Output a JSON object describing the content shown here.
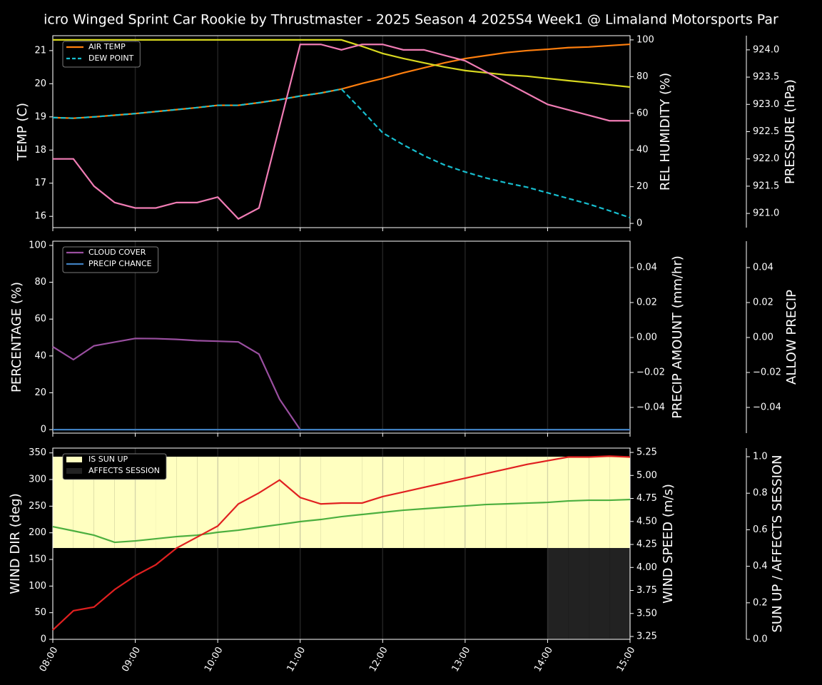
{
  "chart_data": [
    {
      "type": "line",
      "title": "icro Winged Sprint Car Rookie by Thrustmaster - 2025 Season 4 2025S4 Week1 @ Limaland Motorsports Par",
      "x": [
        8,
        8.25,
        8.5,
        8.75,
        9,
        9.25,
        9.5,
        9.75,
        10,
        10.25,
        10.5,
        10.75,
        11,
        11.25,
        11.5,
        11.75,
        12,
        12.25,
        12.5,
        12.75,
        13,
        13.25,
        13.5,
        13.75,
        14,
        14.25,
        14.5,
        14.75,
        15
      ],
      "xlim": [
        8,
        15
      ],
      "xticks": [
        8,
        9,
        10,
        11,
        12,
        13,
        14,
        15
      ],
      "grid": true,
      "ylabel": "TEMP (C)",
      "ylabel_color": "#ffffff",
      "ylim": [
        15.66,
        21.45
      ],
      "yticks": [
        16,
        17,
        18,
        19,
        20,
        21
      ],
      "y2label": "REL HUMIDITY (%)",
      "y2label_color": "#d0d020",
      "y2lim": [
        -2.3,
        102.3
      ],
      "y2ticks": [
        0,
        20,
        40,
        60,
        80,
        100
      ],
      "y3label": "PRESSURE (hPa)",
      "y3label_color": "#f07cb4",
      "y3lim": [
        920.74,
        924.26
      ],
      "y3ticks": [
        {
          "value": 921,
          "label": "921.0"
        },
        921.5,
        {
          "value": 922,
          "label": "922.0"
        },
        922.5,
        {
          "value": 923,
          "label": "923.0"
        },
        923.5,
        {
          "value": 924,
          "label": "924.0"
        }
      ],
      "series": [
        {
          "name": "AIR TEMP",
          "color": "#ff7f0e",
          "axis": "y",
          "style": "solid",
          "in_legend": true,
          "values": [
            18.98,
            18.96,
            19.0,
            19.05,
            19.1,
            19.16,
            19.22,
            19.28,
            19.35,
            19.35,
            19.43,
            19.52,
            19.63,
            19.72,
            19.84,
            20.01,
            20.16,
            20.33,
            20.48,
            20.63,
            20.76,
            20.85,
            20.94,
            21.0,
            21.04,
            21.09,
            21.11,
            21.15,
            21.19
          ]
        },
        {
          "name": "DEW POINT",
          "color": "#17becf",
          "axis": "y",
          "style": "dashed",
          "in_legend": true,
          "values": [
            18.98,
            18.96,
            19.0,
            19.05,
            19.1,
            19.16,
            19.22,
            19.28,
            19.35,
            19.35,
            19.43,
            19.52,
            19.63,
            19.72,
            19.84,
            19.19,
            18.52,
            18.16,
            17.83,
            17.55,
            17.34,
            17.16,
            17.01,
            16.88,
            16.71,
            16.54,
            16.37,
            16.17,
            15.96
          ]
        },
        {
          "name": "REL HUMIDITY",
          "color": "#d8d820",
          "axis": "y2",
          "style": "solid",
          "in_legend": false,
          "values": [
            100,
            100,
            100,
            100,
            100,
            100,
            100,
            100,
            100,
            100,
            100,
            100,
            100,
            100,
            100,
            96.5,
            92.6,
            89.9,
            87.5,
            85.2,
            83.3,
            82.1,
            80.9,
            80.2,
            79.0,
            77.8,
            76.7,
            75.5,
            74.3
          ]
        },
        {
          "name": "PRESSURE",
          "color": "#f07cb4",
          "axis": "y3",
          "style": "solid",
          "in_legend": false,
          "values": [
            922.0,
            922.0,
            921.5,
            921.2,
            921.1,
            921.1,
            921.2,
            921.2,
            921.3,
            920.9,
            921.1,
            922.6,
            924.1,
            924.1,
            924.0,
            924.1,
            924.1,
            924.0,
            924.0,
            923.9,
            923.8,
            923.6,
            923.4,
            923.2,
            923.0,
            922.9,
            922.8,
            922.7,
            922.7
          ]
        }
      ]
    },
    {
      "type": "line",
      "x": [
        8,
        8.25,
        8.5,
        8.75,
        9,
        9.25,
        9.5,
        9.75,
        10,
        10.25,
        10.5,
        10.75,
        11,
        11.25,
        11.5,
        11.75,
        12,
        12.25,
        12.5,
        12.75,
        13,
        13.25,
        13.5,
        13.75,
        14,
        14.25,
        14.5,
        14.75,
        15
      ],
      "xlim": [
        8,
        15
      ],
      "xticks": [
        8,
        9,
        10,
        11,
        12,
        13,
        14,
        15
      ],
      "grid": true,
      "ylabel": "PERCENTAGE (%)",
      "ylabel_color": "#ffffff",
      "ylim": [
        -1.9,
        102.3
      ],
      "yticks": [
        0,
        20,
        40,
        60,
        80,
        100
      ],
      "y2label": "PRECIP AMOUNT (mm/hr)",
      "y2label_color": "#a0522d",
      "y2lim": [
        -0.0547,
        0.0551
      ],
      "y2ticks": [
        {
          "value": -0.04,
          "label": "−0.04"
        },
        {
          "value": -0.02,
          "label": "−0.02"
        },
        {
          "value": 0,
          "label": "0.00"
        },
        {
          "value": 0.02,
          "label": "0.02"
        },
        {
          "value": 0.04,
          "label": "0.04"
        }
      ],
      "y3label": "ALLOW PRECIP",
      "y3label_color": "#ffffff",
      "y3lim": [
        -0.0547,
        0.0551
      ],
      "y3ticks": [
        {
          "value": -0.04,
          "label": "−0.04"
        },
        {
          "value": -0.02,
          "label": "−0.02"
        },
        {
          "value": 0,
          "label": "0.00"
        },
        {
          "value": 0.02,
          "label": "0.02"
        },
        {
          "value": 0.04,
          "label": "0.04"
        }
      ],
      "series": [
        {
          "name": "CLOUD COVER",
          "color": "#9a4fa0",
          "axis": "y",
          "style": "solid",
          "in_legend": true,
          "values": [
            45,
            38,
            45.5,
            47.5,
            49.5,
            49.4,
            49,
            48.3,
            48,
            47.6,
            41,
            16.5,
            0,
            0,
            0,
            0,
            0,
            0,
            0,
            0,
            0,
            0,
            0,
            0,
            0,
            0,
            0,
            0,
            0
          ]
        },
        {
          "name": "PRECIP CHANCE",
          "color": "#3f7fbf",
          "axis": "y",
          "style": "solid",
          "in_legend": true,
          "values": [
            0,
            0,
            0,
            0,
            0,
            0,
            0,
            0,
            0,
            0,
            0,
            0,
            0,
            0,
            0,
            0,
            0,
            0,
            0,
            0,
            0,
            0,
            0,
            0,
            0,
            0,
            0,
            0,
            0
          ]
        }
      ]
    },
    {
      "type": "line",
      "x": [
        8,
        8.25,
        8.5,
        8.75,
        9,
        9.25,
        9.5,
        9.75,
        10,
        10.25,
        10.5,
        10.75,
        11,
        11.25,
        11.5,
        11.75,
        12,
        12.25,
        12.5,
        12.75,
        13,
        13.25,
        13.5,
        13.75,
        14,
        14.25,
        14.5,
        14.75,
        15
      ],
      "xlim": [
        8,
        15
      ],
      "xticks": [
        {
          "value": 8,
          "label": "08:00"
        },
        {
          "value": 9,
          "label": "09:00"
        },
        {
          "value": 10,
          "label": "10:00"
        },
        {
          "value": 11,
          "label": "11:00"
        },
        {
          "value": 12,
          "label": "12:00"
        },
        {
          "value": 13,
          "label": "13:00"
        },
        {
          "value": 14,
          "label": "14:00"
        },
        {
          "value": 15,
          "label": "15:00"
        }
      ],
      "grid": true,
      "ylabel": "WIND DIR (deg)",
      "ylabel_color": "#4caf3f",
      "ylim": [
        0,
        359
      ],
      "yticks": [
        0,
        50,
        100,
        150,
        200,
        250,
        300,
        350
      ],
      "y2label": "WIND SPEED (m/s)",
      "y2label_color": "#e02020",
      "y2lim": [
        3.219,
        5.297
      ],
      "y2ticks": [
        3.25,
        {
          "value": 3.5,
          "label": "3.50"
        },
        3.75,
        {
          "value": 4,
          "label": "4.00"
        },
        4.25,
        {
          "value": 4.5,
          "label": "4.50"
        },
        4.75,
        {
          "value": 5,
          "label": "5.00"
        },
        5.25
      ],
      "y3label": "SUN UP / AFFECTS SESSION",
      "y3label_color": "#ffffff",
      "y3lim": [
        0,
        1.047
      ],
      "y3ticks": [
        {
          "value": 0,
          "label": "0.0"
        },
        0.2,
        0.4,
        0.6,
        0.8,
        {
          "value": 1,
          "label": "1.0"
        }
      ],
      "series": [
        {
          "name": "IS SUN UP",
          "color": "#ffffc0",
          "axis": "y3",
          "style": "fill-upper",
          "in_legend": true,
          "values": [
            1,
            1,
            1,
            1,
            1,
            1,
            1,
            1,
            1,
            1,
            1,
            1,
            1,
            1,
            1,
            1,
            1,
            1,
            1,
            1,
            1,
            1,
            1,
            1,
            1,
            1,
            1,
            1,
            1
          ]
        },
        {
          "name": "AFFECTS SESSION",
          "color": "#222222",
          "axis": "y3",
          "style": "fill-lower",
          "in_legend": true,
          "values": [
            0,
            0,
            0,
            0,
            0,
            0,
            0,
            0,
            0,
            0,
            0,
            0,
            0,
            0,
            0,
            0,
            0,
            0,
            0,
            0,
            0,
            0,
            0,
            0,
            1,
            1,
            1,
            1,
            1
          ]
        },
        {
          "name": "WIND DIR",
          "color": "#4caf3f",
          "axis": "y",
          "style": "solid",
          "in_legend": false,
          "values": [
            211.6,
            203.6,
            195.5,
            182.1,
            184.8,
            188.8,
            192.8,
            195.5,
            200.9,
            204.9,
            210.3,
            215.6,
            221.0,
            225.0,
            230.3,
            234.4,
            238.4,
            242.4,
            245.1,
            247.8,
            250.4,
            253.1,
            254.4,
            255.8,
            257.1,
            259.8,
            261.1,
            261.1,
            262.5
          ]
        },
        {
          "name": "WIND SPEED",
          "color": "#e02020",
          "axis": "y2",
          "style": "solid",
          "in_legend": false,
          "values": [
            3.32,
            3.53,
            3.57,
            3.76,
            3.91,
            4.03,
            4.21,
            4.33,
            4.45,
            4.69,
            4.81,
            4.95,
            4.76,
            4.69,
            4.7,
            4.7,
            4.77,
            4.82,
            4.87,
            4.92,
            4.97,
            5.02,
            5.07,
            5.12,
            5.16,
            5.2,
            5.2,
            5.21,
            5.2
          ]
        }
      ]
    }
  ]
}
